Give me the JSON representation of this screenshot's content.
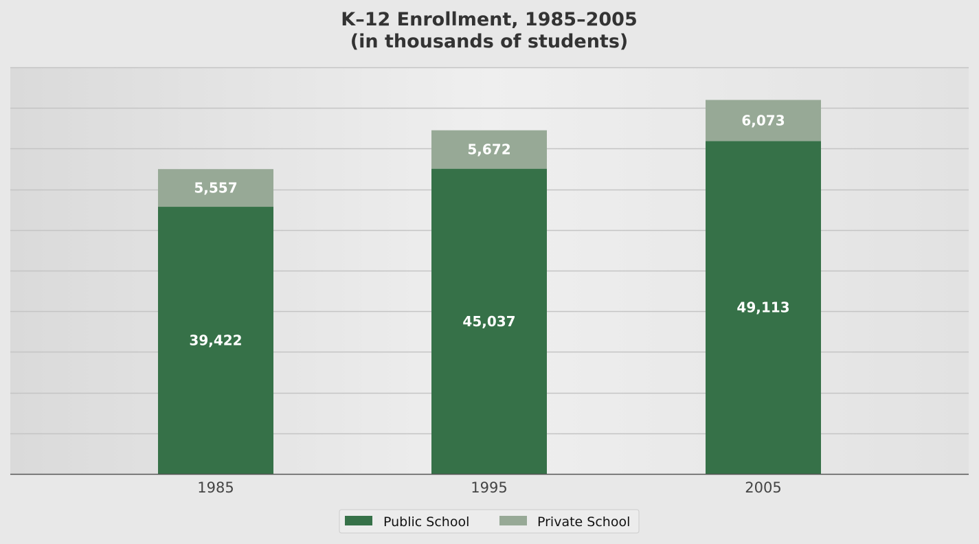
{
  "chart_data": {
    "type": "bar",
    "stacked": true,
    "title_lines": [
      "K–12 Enrollment, 1985–2005",
      "(in thousands of students)"
    ],
    "categories": [
      "1985",
      "1995",
      "2005"
    ],
    "series": [
      {
        "name": "Public School",
        "values": [
          39422,
          45037,
          49113
        ],
        "labels": [
          "39,422",
          "45,037",
          "49,113"
        ],
        "color": "#367148"
      },
      {
        "name": "Private School",
        "values": [
          5557,
          5672,
          6073
        ],
        "labels": [
          "5,557",
          "5,672",
          "6,073"
        ],
        "color": "#97a996"
      }
    ],
    "ylim": [
      0,
      60000
    ],
    "y_tick_labels_shown": false,
    "grid": true,
    "legend_position": "bottom-center",
    "colors": {
      "background": "#e8e8e8",
      "gridline": "#c4c4c4",
      "axis": "#555555"
    }
  }
}
